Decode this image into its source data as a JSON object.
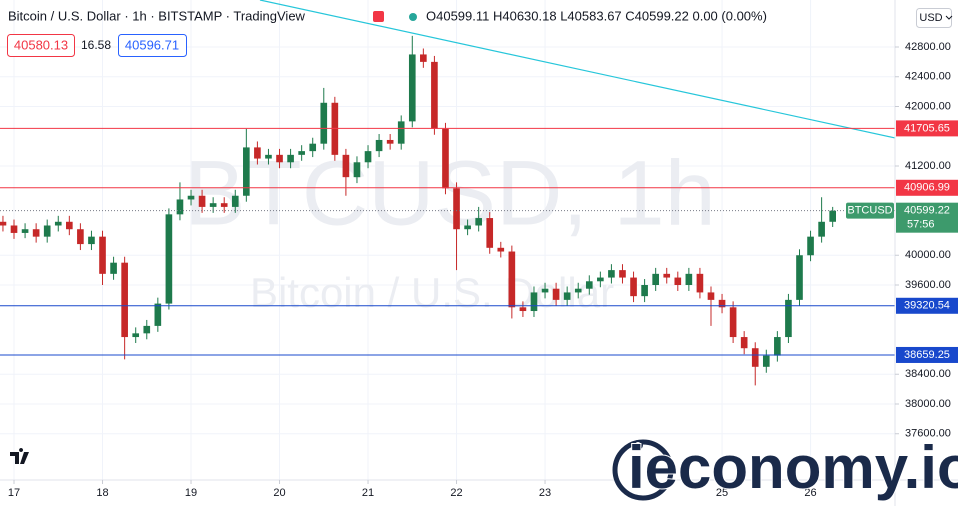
{
  "header": {
    "title": "Bitcoin / U.S. Dollar · 1h · BITSTAMP · TradingView",
    "ohlc": "O40599.11 H40630.18 L40583.67 C40599.22 0.00 (0.00%)",
    "bid": "40580.13",
    "spread": "16.58",
    "ask": "40596.71",
    "currency": "USD"
  },
  "logo": {
    "text": "ieconomy.io"
  },
  "chart_data": {
    "type": "candlestick",
    "watermark": [
      "BTCUSD, 1h",
      "Bitcoin / U.S. Dollar"
    ],
    "up_color": "#1e7a4c",
    "down_color": "#c62828",
    "x": [
      -3,
      0,
      3,
      6,
      9,
      12,
      15,
      18,
      21,
      24,
      27,
      30,
      33,
      36,
      39,
      42,
      45,
      48,
      51,
      54,
      57,
      60,
      63,
      66,
      69,
      72,
      75,
      78,
      81,
      84,
      87,
      90,
      93,
      96,
      99,
      102,
      105,
      108,
      111,
      114,
      117,
      120,
      123,
      126,
      129,
      132,
      135,
      138,
      141,
      144,
      147,
      150,
      153,
      156,
      159,
      162,
      165,
      168,
      171,
      174,
      177,
      180,
      183,
      186,
      189,
      192,
      195,
      198,
      201,
      204,
      207,
      210,
      213,
      216,
      219,
      222
    ],
    "open": [
      40450,
      40400,
      40300,
      40350,
      40250,
      40400,
      40450,
      40350,
      40150,
      40250,
      39750,
      39900,
      38900,
      38950,
      39050,
      39350,
      40550,
      40750,
      40800,
      40650,
      40700,
      40650,
      40800,
      41450,
      41300,
      41350,
      41250,
      41350,
      41400,
      41500,
      42050,
      41350,
      41050,
      41250,
      41400,
      41550,
      41500,
      41800,
      42700,
      42600,
      41700,
      40900,
      40350,
      40400,
      40500,
      40100,
      40050,
      39300,
      39250,
      39500,
      39550,
      39400,
      39500,
      39550,
      39650,
      39700,
      39800,
      39700,
      39450,
      39600,
      39750,
      39700,
      39600,
      39750,
      39500,
      39400,
      39300,
      38900,
      38750,
      38500,
      38650,
      38900,
      39400,
      40000,
      40250,
      40450
    ],
    "high": [
      40530,
      40480,
      40430,
      40430,
      40480,
      40530,
      40530,
      40430,
      40330,
      40330,
      39980,
      39980,
      39030,
      39130,
      39430,
      40630,
      40980,
      40880,
      40880,
      40780,
      40780,
      40880,
      41700,
      41530,
      41430,
      41430,
      41430,
      41480,
      41580,
      42250,
      42130,
      41430,
      41330,
      41480,
      41630,
      41630,
      41880,
      42950,
      42780,
      42680,
      41780,
      40980,
      40480,
      40650,
      40580,
      40180,
      40130,
      39380,
      39580,
      39630,
      39630,
      39580,
      39630,
      39730,
      39780,
      39880,
      39880,
      39780,
      39680,
      39830,
      39830,
      39780,
      39830,
      39830,
      39580,
      39480,
      39380,
      38980,
      38830,
      38730,
      38980,
      39480,
      40080,
      40330,
      40780,
      40650
    ],
    "low": [
      40320,
      40220,
      40230,
      40170,
      40170,
      40320,
      40270,
      40070,
      40070,
      39600,
      39670,
      38600,
      38820,
      38870,
      38970,
      39270,
      40470,
      40670,
      40570,
      40570,
      40570,
      40570,
      40720,
      41220,
      41220,
      41170,
      41170,
      41270,
      41320,
      41420,
      41270,
      40800,
      40970,
      41170,
      41320,
      41420,
      41420,
      41720,
      42520,
      41620,
      40820,
      39800,
      40270,
      40320,
      40020,
      39970,
      39150,
      39170,
      39170,
      39420,
      39320,
      39320,
      39420,
      39470,
      39570,
      39620,
      39620,
      39370,
      39370,
      39520,
      39620,
      39520,
      39520,
      39420,
      39050,
      39220,
      38820,
      38670,
      38250,
      38420,
      38570,
      38820,
      39320,
      39920,
      40170,
      40380
    ],
    "close": [
      40400,
      40300,
      40350,
      40250,
      40400,
      40450,
      40350,
      40150,
      40250,
      39750,
      39900,
      38900,
      38950,
      39050,
      39350,
      40550,
      40750,
      40800,
      40650,
      40700,
      40650,
      40800,
      41450,
      41300,
      41350,
      41250,
      41350,
      41400,
      41500,
      42050,
      41350,
      41050,
      41250,
      41400,
      41550,
      41500,
      41800,
      42700,
      42600,
      41700,
      40900,
      40350,
      40400,
      40500,
      40100,
      40050,
      39300,
      39250,
      39500,
      39550,
      39400,
      39500,
      39550,
      39650,
      39700,
      39800,
      39700,
      39450,
      39600,
      39750,
      39700,
      39600,
      39750,
      39500,
      39400,
      39300,
      38900,
      38750,
      38500,
      38650,
      38900,
      39400,
      40000,
      40250,
      40450,
      40599.22
    ],
    "xlim": [
      -3.8,
      238.9
    ],
    "xticks": [
      {
        "value": 0,
        "label": "17"
      },
      {
        "value": 24,
        "label": "18"
      },
      {
        "value": 48,
        "label": "19"
      },
      {
        "value": 72,
        "label": "20"
      },
      {
        "value": 96,
        "label": "21"
      },
      {
        "value": 120,
        "label": "22"
      },
      {
        "value": 144,
        "label": "23"
      },
      {
        "value": 192,
        "label": "25"
      },
      {
        "value": 216,
        "label": "26"
      }
    ],
    "ylim": [
      36978,
      43432
    ],
    "yticks": [
      {
        "value": 42800,
        "label": "42800.00"
      },
      {
        "value": 42400,
        "label": "42400.00"
      },
      {
        "value": 42000,
        "label": "42000.00"
      },
      {
        "value": 41200,
        "label": "41200.00"
      },
      {
        "value": 40000,
        "label": "40000.00"
      },
      {
        "value": 39600,
        "label": "39600.00"
      },
      {
        "value": 38400,
        "label": "38400.00"
      },
      {
        "value": 38000,
        "label": "38000.00"
      },
      {
        "value": 37600,
        "label": "37600.00"
      }
    ],
    "grid": true,
    "levels": [
      {
        "value": 41705.65,
        "color": "#f23645"
      },
      {
        "value": 40906.99,
        "color": "#f23645"
      },
      {
        "value": 39320.54,
        "color": "#1848cc"
      },
      {
        "value": 38659.25,
        "color": "#1848cc"
      }
    ],
    "trendline": {
      "x": [
        66.7,
        238.9
      ],
      "y": [
        43432,
        41577
      ],
      "color": "#26c6da"
    },
    "last_price": {
      "value": 40599.22,
      "label": "BTCUSD",
      "countdown": "57:56",
      "color": "#3d9a6c"
    }
  }
}
